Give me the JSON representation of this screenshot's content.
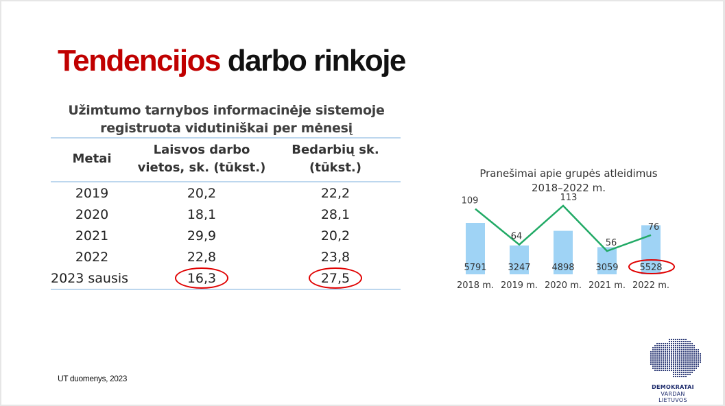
{
  "title": {
    "red": "Tendencijos",
    "black": "darbo rinkoje"
  },
  "table": {
    "caption_line1": "Užimtumo tarnybos informacinėje sistemoje",
    "caption_line2": "registruota vidutiniškai per mėnesį",
    "headers": {
      "year": "Metai",
      "vacancies_line1": "Laisvos darbo",
      "vacancies_line2": "vietos, sk. (tūkst.)",
      "unemployed_line1": "Bedarbių sk.",
      "unemployed_line2": "(tūkst.)"
    },
    "rows": [
      {
        "year": "2019",
        "vacancies": "20,2",
        "unemployed": "22,2"
      },
      {
        "year": "2020",
        "vacancies": "18,1",
        "unemployed": "28,1"
      },
      {
        "year": "2021",
        "vacancies": "29,9",
        "unemployed": "20,2"
      },
      {
        "year": "2022",
        "vacancies": "22,8",
        "unemployed": "23,8"
      },
      {
        "year": "2023 sausis",
        "vacancies": "16,3",
        "unemployed": "27,5"
      }
    ]
  },
  "source": "UT duomenys, 2023",
  "chart_data": {
    "type": "bar",
    "title_line1": "Pranešimai apie grupės atleidimus",
    "title_line2": "2018–2022 m.",
    "categories": [
      "2018 m.",
      "2019 m.",
      "2020 m.",
      "2021 m.",
      "2022 m."
    ],
    "series": [
      {
        "values": [
          5791,
          3247,
          4898,
          3059,
          5528
        ],
        "color": "#9fd3f5"
      },
      {
        "values": [
          109,
          64,
          113,
          56,
          76
        ],
        "color": "#22aa66"
      }
    ],
    "highlighted_category": "2022 m.",
    "highlight_color": "#e00000"
  },
  "logo": {
    "line1": "DEMOKRATAI",
    "line2": "VARDAN LIETUVOS",
    "color": "#1c2a6b"
  }
}
